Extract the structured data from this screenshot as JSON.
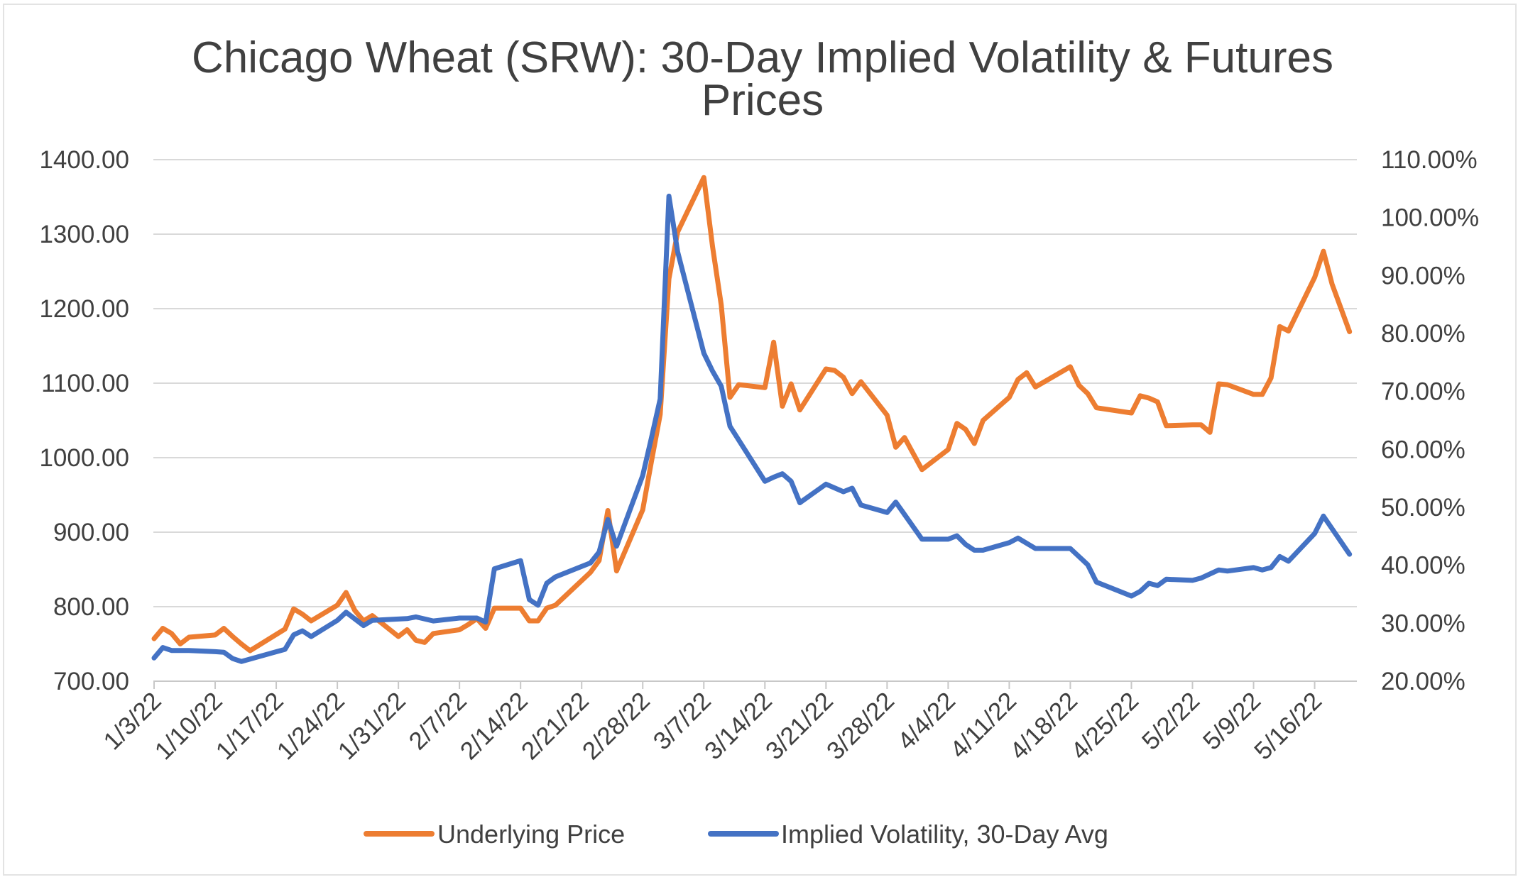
{
  "chart_data": {
    "type": "line",
    "title": "Chicago Wheat (SRW): 30-Day Implied Volatility & Futures Prices",
    "title_lines": [
      "Chicago Wheat (SRW): 30-Day Implied Volatility & Futures",
      "Prices"
    ],
    "x_axis": {
      "type": "date",
      "start": "1/3/22",
      "tick_labels": [
        "1/3/22",
        "1/10/22",
        "1/17/22",
        "1/24/22",
        "1/31/22",
        "2/7/22",
        "2/14/22",
        "2/21/22",
        "2/28/22",
        "3/7/22",
        "3/14/22",
        "3/21/22",
        "3/28/22",
        "4/4/22",
        "4/11/22",
        "4/18/22",
        "4/25/22",
        "5/2/22",
        "5/9/22",
        "5/16/22"
      ]
    },
    "y_axis_left": {
      "range": [
        700,
        1400
      ],
      "tick_labels": [
        "1400.00",
        "1300.00",
        "1200.00",
        "1100.00",
        "1000.00",
        "900.00",
        "800.00",
        "700.00"
      ],
      "tick_values": [
        1400,
        1300,
        1200,
        1100,
        1000,
        900,
        800,
        700
      ]
    },
    "y_axis_right": {
      "range": [
        20,
        110
      ],
      "tick_labels": [
        "110.00%",
        "100.00%",
        "90.00%",
        "80.00%",
        "70.00%",
        "60.00%",
        "50.00%",
        "40.00%",
        "30.00%",
        "20.00%"
      ],
      "tick_values": [
        110,
        100,
        90,
        80,
        70,
        60,
        50,
        40,
        30,
        20
      ]
    },
    "grid": true,
    "legend_position": "bottom",
    "series": [
      {
        "name": "Underlying Price",
        "axis": "left",
        "color": "#ED7D31",
        "x": [
          "1/3",
          "1/4",
          "1/5",
          "1/6",
          "1/7",
          "1/10",
          "1/11",
          "1/12",
          "1/13",
          "1/14",
          "1/18",
          "1/19",
          "1/20",
          "1/21",
          "1/24",
          "1/25",
          "1/26",
          "1/27",
          "1/28",
          "1/31",
          "2/1",
          "2/2",
          "2/3",
          "2/4",
          "2/7",
          "2/8",
          "2/9",
          "2/10",
          "2/11",
          "2/14",
          "2/15",
          "2/16",
          "2/17",
          "2/18",
          "2/22",
          "2/23",
          "2/24",
          "2/25",
          "2/28",
          "3/1",
          "3/2",
          "3/3",
          "3/4",
          "3/7",
          "3/8",
          "3/9",
          "3/10",
          "3/11",
          "3/14",
          "3/15",
          "3/16",
          "3/17",
          "3/18",
          "3/21",
          "3/22",
          "3/23",
          "3/24",
          "3/25",
          "3/28",
          "3/29",
          "3/30",
          "4/1",
          "4/4",
          "4/5",
          "4/6",
          "4/7",
          "4/8",
          "4/11",
          "4/12",
          "4/13",
          "4/14",
          "4/18",
          "4/19",
          "4/20",
          "4/21",
          "4/25",
          "4/26",
          "4/27",
          "4/28",
          "4/29",
          "5/2",
          "5/3",
          "5/4",
          "5/5",
          "5/6",
          "5/9",
          "5/10",
          "5/11",
          "5/12",
          "5/13",
          "5/16",
          "5/17",
          "5/18",
          "5/20"
        ],
        "values": [
          757,
          771,
          764,
          750,
          759,
          762,
          771,
          760,
          750,
          741,
          770,
          797,
          790,
          781,
          802,
          819,
          795,
          781,
          788,
          760,
          769,
          755,
          752,
          764,
          769,
          776,
          784,
          771,
          798,
          798,
          781,
          781,
          798,
          802,
          846,
          862,
          929,
          848,
          930,
          995,
          1058,
          1240,
          1303,
          1376,
          1283,
          1205,
          1081,
          1098,
          1094,
          1155,
          1069,
          1099,
          1064,
          1119,
          1117,
          1108,
          1086,
          1102,
          1057,
          1014,
          1027,
          984,
          1011,
          1046,
          1038,
          1019,
          1050,
          1081,
          1105,
          1114,
          1095,
          1122,
          1097,
          1086,
          1067,
          1060,
          1083,
          1080,
          1075,
          1043,
          1044,
          1044,
          1034,
          1099,
          1098,
          1085,
          1085,
          1107,
          1176,
          1170,
          1242,
          1277,
          1233,
          1169
        ]
      },
      {
        "name": "Implied Volatility, 30-Day Avg",
        "axis": "right",
        "color": "#4472C4",
        "x": [
          "1/3",
          "1/4",
          "1/5",
          "1/7",
          "1/10",
          "1/11",
          "1/12",
          "1/13",
          "1/18",
          "1/19",
          "1/20",
          "1/21",
          "1/24",
          "1/25",
          "1/27",
          "1/28",
          "2/1",
          "2/2",
          "2/4",
          "2/7",
          "2/9",
          "2/10",
          "2/11",
          "2/14",
          "2/15",
          "2/16",
          "2/17",
          "2/18",
          "2/22",
          "2/23",
          "2/24",
          "2/25",
          "2/28",
          "3/1",
          "3/2",
          "3/3",
          "3/4",
          "3/7",
          "3/8",
          "3/9",
          "3/10",
          "3/14",
          "3/15",
          "3/16",
          "3/17",
          "3/18",
          "3/21",
          "3/23",
          "3/24",
          "3/25",
          "3/28",
          "3/29",
          "4/1",
          "4/4",
          "4/5",
          "4/6",
          "4/7",
          "4/8",
          "4/11",
          "4/12",
          "4/14",
          "4/18",
          "4/20",
          "4/21",
          "4/25",
          "4/26",
          "4/27",
          "4/28",
          "4/29",
          "5/2",
          "5/3",
          "5/5",
          "5/6",
          "5/9",
          "5/10",
          "5/11",
          "5/12",
          "5/13",
          "5/16",
          "5/17",
          "5/20"
        ],
        "values": [
          24.0,
          25.8,
          25.3,
          25.3,
          25.1,
          25.0,
          23.9,
          23.4,
          25.5,
          28.0,
          28.7,
          27.7,
          30.5,
          31.9,
          29.6,
          30.5,
          30.8,
          31.1,
          30.4,
          30.9,
          30.9,
          30.2,
          39.4,
          40.8,
          34.1,
          33.1,
          36.9,
          38.0,
          40.4,
          42.3,
          47.9,
          43.3,
          55.5,
          62.0,
          68.7,
          103.7,
          94.1,
          76.6,
          73.5,
          70.9,
          64.0,
          54.5,
          55.2,
          55.8,
          54.5,
          50.8,
          54.0,
          52.7,
          53.3,
          50.4,
          49.1,
          50.9,
          44.5,
          44.5,
          45.1,
          43.6,
          42.6,
          42.6,
          43.9,
          44.7,
          42.9,
          42.9,
          40.1,
          37.1,
          34.7,
          35.5,
          36.9,
          36.5,
          37.6,
          37.4,
          37.8,
          39.2,
          39.0,
          39.6,
          39.2,
          39.6,
          41.5,
          40.7,
          45.5,
          48.5,
          41.9
        ]
      }
    ]
  }
}
